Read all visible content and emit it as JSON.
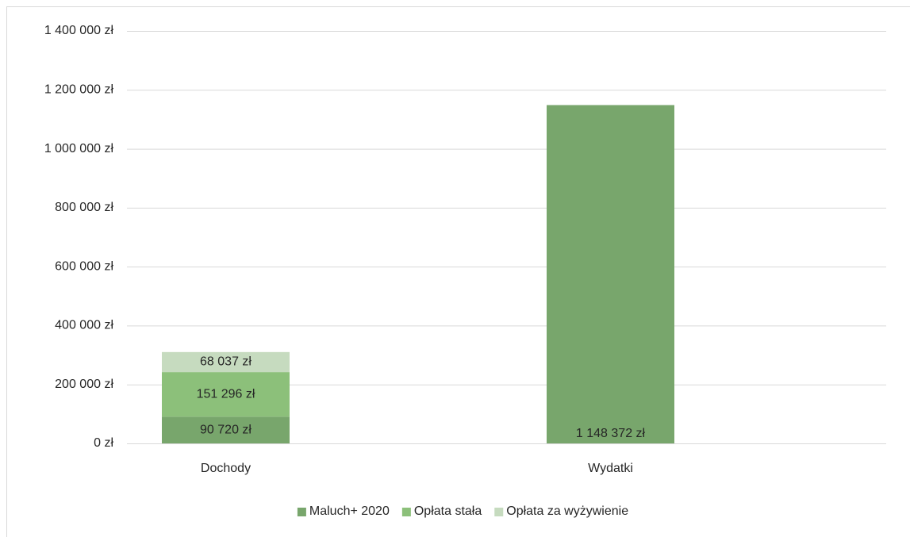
{
  "chart_data": {
    "type": "stacked_bar",
    "categories": [
      "Dochody",
      "Wydatki"
    ],
    "series": [
      {
        "name": "Maluch+ 2020",
        "color": "#78a66c",
        "values": [
          90720,
          1148372
        ],
        "value_labels": [
          "90 720 zł",
          "1 148 372 zł"
        ]
      },
      {
        "name": "Opłata stała",
        "color": "#8cc07a",
        "values": [
          151296,
          null
        ],
        "value_labels": [
          "151 296 zł",
          null
        ]
      },
      {
        "name": "Opłata za wyżywienie",
        "color": "#c6dbbf",
        "values": [
          68037,
          null
        ],
        "value_labels": [
          "68 037 zł",
          null
        ]
      }
    ],
    "ylim": [
      0,
      1400000
    ],
    "yticks": [
      {
        "value": 0,
        "label": "0 zł"
      },
      {
        "value": 200000,
        "label": "200 000 zł"
      },
      {
        "value": 400000,
        "label": "400 000 zł"
      },
      {
        "value": 600000,
        "label": "600 000 zł"
      },
      {
        "value": 800000,
        "label": "800 000 zł"
      },
      {
        "value": 1000000,
        "label": "1 000 000 zł"
      },
      {
        "value": 1200000,
        "label": "1 200 000 zł"
      },
      {
        "value": 1400000,
        "label": "1 400 000 zł"
      }
    ],
    "grid": true,
    "legend": "bottom"
  }
}
